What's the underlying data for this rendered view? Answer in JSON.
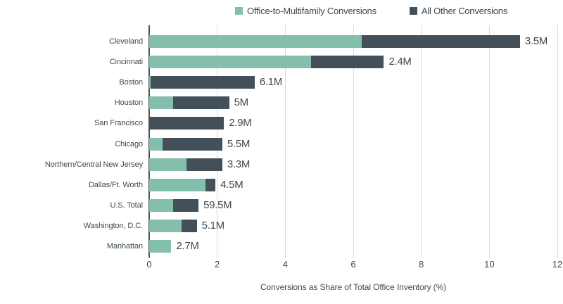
{
  "colors": {
    "teal": "#84bfae",
    "slate": "#43505a",
    "text": "#3d4a52",
    "grid": "#d7dbdb"
  },
  "legend": {
    "items": [
      {
        "label": "Office-to-Multifamily Conversions",
        "color_key": "teal"
      },
      {
        "label": "All Other Conversions",
        "color_key": "slate"
      }
    ]
  },
  "chart_data": {
    "type": "bar",
    "orientation": "horizontal",
    "stacked": true,
    "title": "",
    "xlabel": "Conversions as Share of Total Office Inventory (%)",
    "ylabel": "",
    "xlim": [
      0,
      12
    ],
    "xticks": [
      0,
      2,
      4,
      6,
      8,
      10,
      12
    ],
    "grid": "vertical",
    "legend_position": "top",
    "categories": [
      "Cleveland",
      "Cincinnati",
      "Boston",
      "Houston",
      "San Francisco",
      "Chicago",
      "Northern/Central New Jersey",
      "Dallas/Ft. Worth",
      "U.S. Total",
      "Washington, D.C.",
      "Manhattan"
    ],
    "series": [
      {
        "name": "Office-to-Multifamily Conversions",
        "color_key": "teal",
        "values": [
          6.25,
          4.75,
          0.05,
          0.7,
          0,
          0.4,
          1.1,
          1.65,
          0.7,
          0.95,
          0.65
        ]
      },
      {
        "name": "All Other Conversions",
        "color_key": "slate",
        "values": [
          4.65,
          2.15,
          3.05,
          1.65,
          2.2,
          1.75,
          1.05,
          0.3,
          0.75,
          0.45,
          0
        ]
      }
    ],
    "bar_labels": [
      "3.5M",
      "2.4M",
      "6.1M",
      "5M",
      "2.9M",
      "5.5M",
      "3.3M",
      "4.5M",
      "59.5M",
      "5.1M",
      "2.7M"
    ]
  }
}
